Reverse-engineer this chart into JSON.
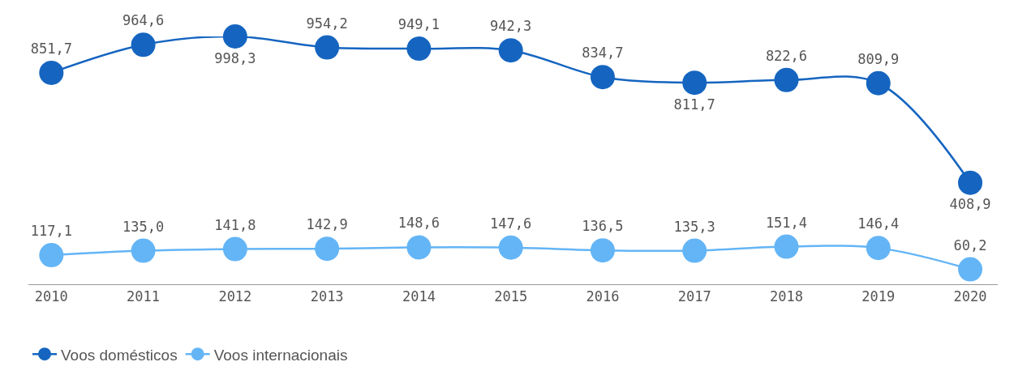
{
  "chart_data": {
    "type": "line",
    "categories": [
      "2010",
      "2011",
      "2012",
      "2013",
      "2014",
      "2015",
      "2016",
      "2017",
      "2018",
      "2019",
      "2020"
    ],
    "series": [
      {
        "name": "Voos domésticos",
        "color": "#1565c0",
        "values": [
          851.7,
          964.6,
          998.3,
          954.2,
          949.1,
          942.3,
          834.7,
          811.7,
          822.6,
          809.9,
          408.9
        ],
        "value_labels": [
          "851,7",
          "964,6",
          "998,3",
          "954,2",
          "949,1",
          "942,3",
          "834,7",
          "811,7",
          "822,6",
          "809,9",
          "408,9"
        ]
      },
      {
        "name": "Voos internacionais",
        "color": "#64b5f6",
        "values": [
          117.1,
          135.0,
          141.8,
          142.9,
          148.6,
          147.6,
          136.5,
          135.3,
          151.4,
          146.4,
          60.2
        ],
        "value_labels": [
          "117,1",
          "135,0",
          "141,8",
          "142,9",
          "148,6",
          "147,6",
          "136,5",
          "135,3",
          "151,4",
          "146,4",
          "60,2"
        ]
      }
    ],
    "marker": "circle",
    "line_style": "solid",
    "legend": "bottom left"
  }
}
